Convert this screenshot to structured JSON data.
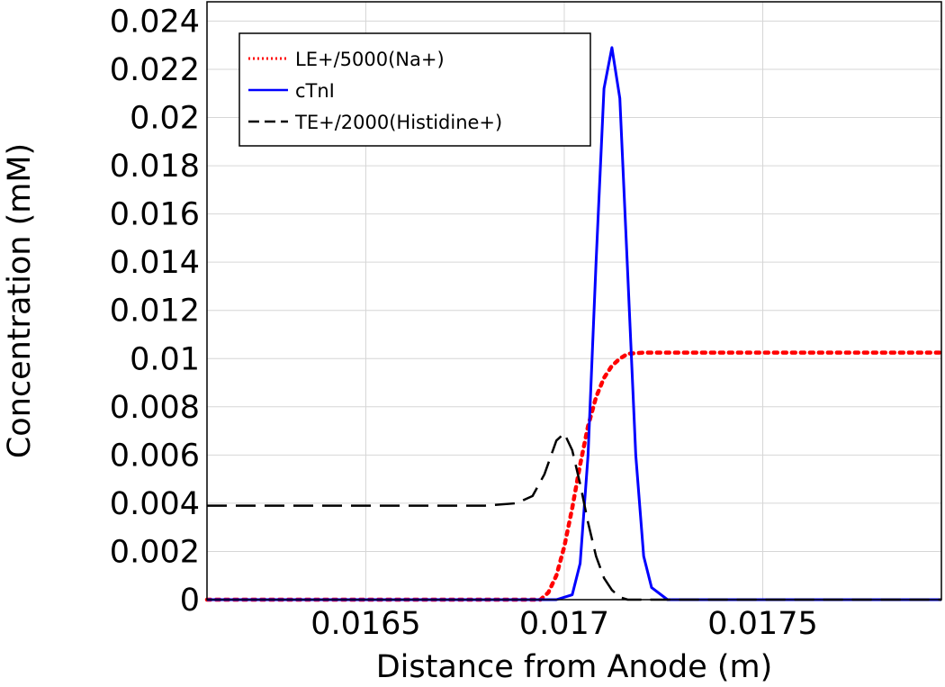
{
  "chart_data": {
    "type": "line",
    "title": "",
    "xlabel": "Distance from Anode (m)",
    "ylabel": "Concentration (mM)",
    "xlim": [
      0.0161,
      0.01795
    ],
    "ylim": [
      0,
      0.0248
    ],
    "grid": true,
    "legend_position": "top-left",
    "x_ticks": [
      {
        "value": 0.0165,
        "label": "0.0165"
      },
      {
        "value": 0.017,
        "label": "0.017"
      },
      {
        "value": 0.0175,
        "label": "0.0175"
      }
    ],
    "y_ticks": [
      {
        "value": 0,
        "label": "0"
      },
      {
        "value": 0.002,
        "label": "0.002"
      },
      {
        "value": 0.004,
        "label": "0.004"
      },
      {
        "value": 0.006,
        "label": "0.006"
      },
      {
        "value": 0.008,
        "label": "0.008"
      },
      {
        "value": 0.01,
        "label": "0.01"
      },
      {
        "value": 0.012,
        "label": "0.012"
      },
      {
        "value": 0.014,
        "label": "0.014"
      },
      {
        "value": 0.016,
        "label": "0.016"
      },
      {
        "value": 0.018,
        "label": "0.018"
      },
      {
        "value": 0.02,
        "label": "0.02"
      },
      {
        "value": 0.022,
        "label": "0.022"
      },
      {
        "value": 0.024,
        "label": "0.024"
      }
    ],
    "series": [
      {
        "name": "LE+/5000(Na+)",
        "color": "#ff0000",
        "style": "dotted",
        "x": [
          0.0161,
          0.01694,
          0.01696,
          0.01698,
          0.017,
          0.01702,
          0.01704,
          0.01706,
          0.01708,
          0.0171,
          0.01712,
          0.01714,
          0.01716,
          0.0172,
          0.0173,
          0.01795
        ],
        "y": [
          0,
          0,
          0.0003,
          0.001,
          0.0022,
          0.0038,
          0.0056,
          0.0072,
          0.0084,
          0.0092,
          0.0097,
          0.01,
          0.0102,
          0.01025,
          0.01025,
          0.01025
        ]
      },
      {
        "name": "cTnI",
        "color": "#0000ff",
        "style": "solid",
        "x": [
          0.0161,
          0.01698,
          0.01702,
          0.01704,
          0.01706,
          0.01708,
          0.0171,
          0.01712,
          0.01714,
          0.01716,
          0.01718,
          0.0172,
          0.01722,
          0.01726,
          0.01795
        ],
        "y": [
          0,
          0,
          0.0002,
          0.0015,
          0.006,
          0.014,
          0.0212,
          0.0229,
          0.0208,
          0.0135,
          0.006,
          0.0018,
          0.0005,
          0,
          0
        ]
      },
      {
        "name": "TE+/2000(Histidine+)",
        "color": "#000000",
        "style": "dashed",
        "x": [
          0.0161,
          0.0168,
          0.01688,
          0.01692,
          0.01695,
          0.01698,
          0.017,
          0.01702,
          0.01704,
          0.01706,
          0.01708,
          0.0171,
          0.01712,
          0.01714,
          0.01716,
          0.0172,
          0.0173,
          0.01795
        ],
        "y": [
          0.0039,
          0.0039,
          0.004,
          0.0043,
          0.0052,
          0.0066,
          0.0069,
          0.0062,
          0.0048,
          0.0032,
          0.0018,
          0.0009,
          0.0004,
          0.0001,
          0,
          0,
          0,
          0
        ]
      }
    ]
  }
}
